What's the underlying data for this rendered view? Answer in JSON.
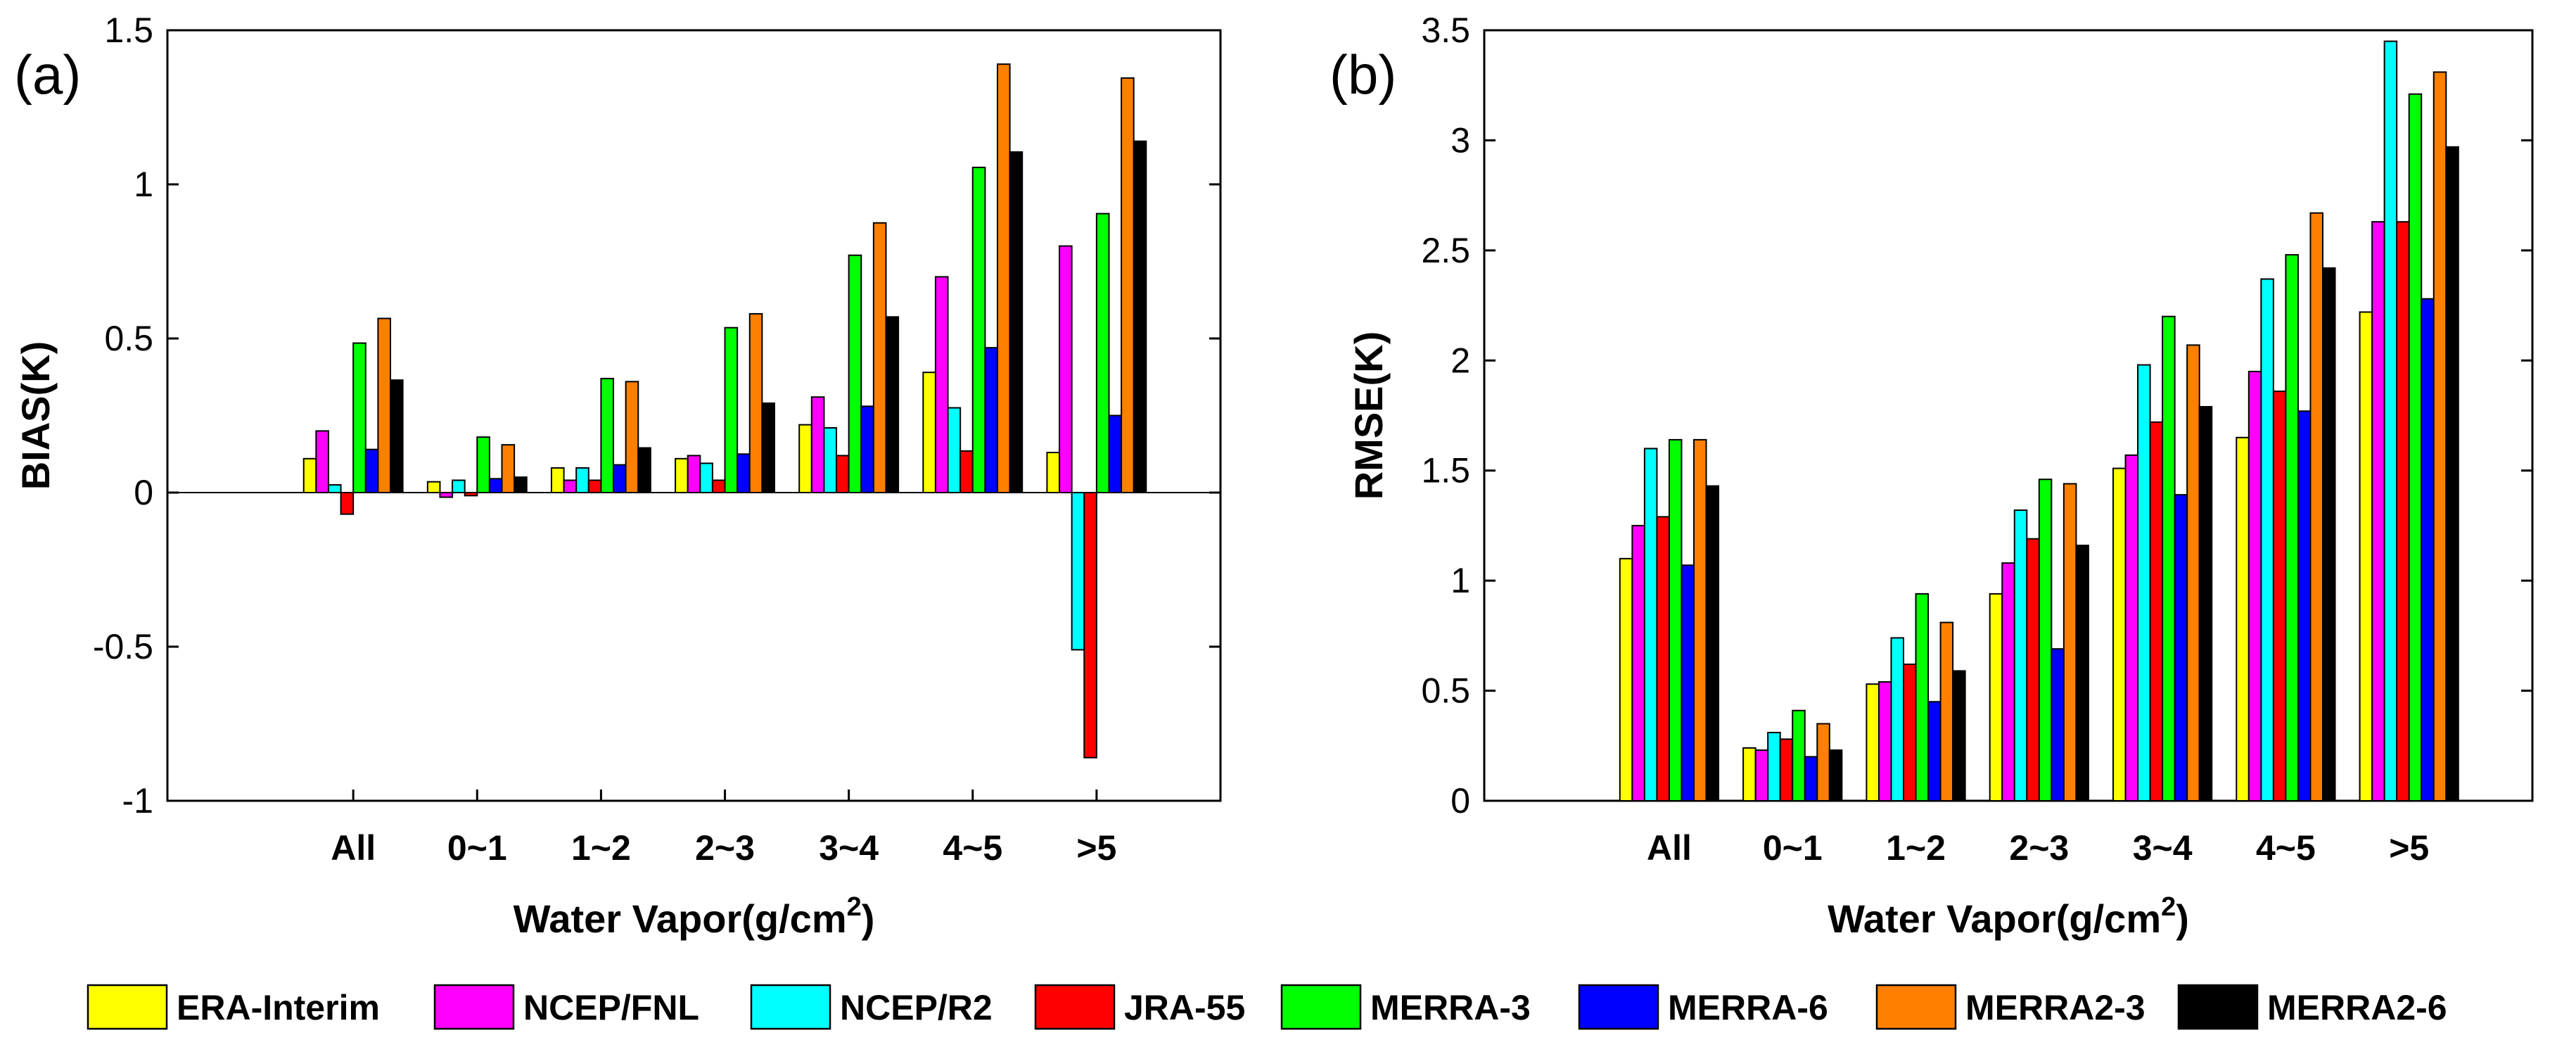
{
  "chart_data": [
    {
      "type": "bar",
      "panel_label": "(a)",
      "title": "",
      "xlabel_main": "Water Vapor(g/cm",
      "xlabel_sup": "2",
      "xlabel_tail": ")",
      "ylabel": "BIAS(K)",
      "ylim": [
        -1,
        1.5
      ],
      "yticks": [
        -1,
        -0.5,
        0,
        0.5,
        1,
        1.5
      ],
      "ytick_labels": [
        "-1",
        "-0.5",
        "0",
        "0.5",
        "1",
        "1.5"
      ],
      "categories": [
        "All",
        "0~1",
        "1~2",
        "2~3",
        "3~4",
        "4~5",
        ">5"
      ],
      "series": [
        {
          "name": "ERA-Interim",
          "values": [
            0.11,
            0.035,
            0.08,
            0.11,
            0.22,
            0.39,
            0.13
          ]
        },
        {
          "name": "NCEP/FNL",
          "values": [
            0.2,
            -0.015,
            0.04,
            0.12,
            0.31,
            0.7,
            0.8
          ]
        },
        {
          "name": "NCEP/R2",
          "values": [
            0.025,
            0.04,
            0.08,
            0.095,
            0.21,
            0.275,
            -0.51
          ]
        },
        {
          "name": "JRA-55",
          "values": [
            -0.07,
            -0.01,
            0.04,
            0.04,
            0.12,
            0.135,
            -0.86
          ]
        },
        {
          "name": "MERRA-3",
          "values": [
            0.485,
            0.18,
            0.37,
            0.535,
            0.77,
            1.055,
            0.905
          ]
        },
        {
          "name": "MERRA-6",
          "values": [
            0.14,
            0.045,
            0.09,
            0.125,
            0.28,
            0.47,
            0.25
          ]
        },
        {
          "name": "MERRA2-3",
          "values": [
            0.565,
            0.155,
            0.36,
            0.58,
            0.875,
            1.39,
            1.345
          ]
        },
        {
          "name": "MERRA2-6",
          "values": [
            0.365,
            0.05,
            0.145,
            0.29,
            0.57,
            1.105,
            1.14
          ]
        }
      ]
    },
    {
      "type": "bar",
      "panel_label": "(b)",
      "title": "",
      "xlabel_main": "Water Vapor(g/cm",
      "xlabel_sup": "2",
      "xlabel_tail": ")",
      "ylabel": "RMSE(K)",
      "ylim": [
        0,
        3.5
      ],
      "yticks": [
        0,
        0.5,
        1,
        1.5,
        2,
        2.5,
        3,
        3.5
      ],
      "ytick_labels": [
        "0",
        "0.5",
        "1",
        "1.5",
        "2",
        "2.5",
        "3",
        "3.5"
      ],
      "categories": [
        "All",
        "0~1",
        "1~2",
        "2~3",
        "3~4",
        "4~5",
        ">5"
      ],
      "series": [
        {
          "name": "ERA-Interim",
          "values": [
            1.1,
            0.24,
            0.53,
            0.94,
            1.51,
            1.65,
            2.22
          ]
        },
        {
          "name": "NCEP/FNL",
          "values": [
            1.25,
            0.23,
            0.54,
            1.08,
            1.57,
            1.95,
            2.63
          ]
        },
        {
          "name": "NCEP/R2",
          "values": [
            1.6,
            0.31,
            0.74,
            1.32,
            1.98,
            2.37,
            3.45
          ]
        },
        {
          "name": "JRA-55",
          "values": [
            1.29,
            0.28,
            0.62,
            1.19,
            1.72,
            1.86,
            2.63
          ]
        },
        {
          "name": "MERRA-3",
          "values": [
            1.64,
            0.41,
            0.94,
            1.46,
            2.2,
            2.48,
            3.21
          ]
        },
        {
          "name": "MERRA-6",
          "values": [
            1.07,
            0.2,
            0.45,
            0.69,
            1.39,
            1.77,
            2.28
          ]
        },
        {
          "name": "MERRA2-3",
          "values": [
            1.64,
            0.35,
            0.81,
            1.44,
            2.07,
            2.67,
            3.31
          ]
        },
        {
          "name": "MERRA2-6",
          "values": [
            1.43,
            0.23,
            0.59,
            1.16,
            1.79,
            2.42,
            2.97
          ]
        }
      ]
    }
  ],
  "legend": {
    "position": "bottom",
    "entries": [
      {
        "name": "ERA-Interim",
        "color": "#ffff00"
      },
      {
        "name": "NCEP/FNL",
        "color": "#ff00ff"
      },
      {
        "name": "NCEP/R2",
        "color": "#00ffff"
      },
      {
        "name": "JRA-55",
        "color": "#ff0000"
      },
      {
        "name": "MERRA-3",
        "color": "#00ff00"
      },
      {
        "name": "MERRA-6",
        "color": "#0000ff"
      },
      {
        "name": "MERRA2-3",
        "color": "#ff8000"
      },
      {
        "name": "MERRA2-6",
        "color": "#000000"
      }
    ]
  }
}
